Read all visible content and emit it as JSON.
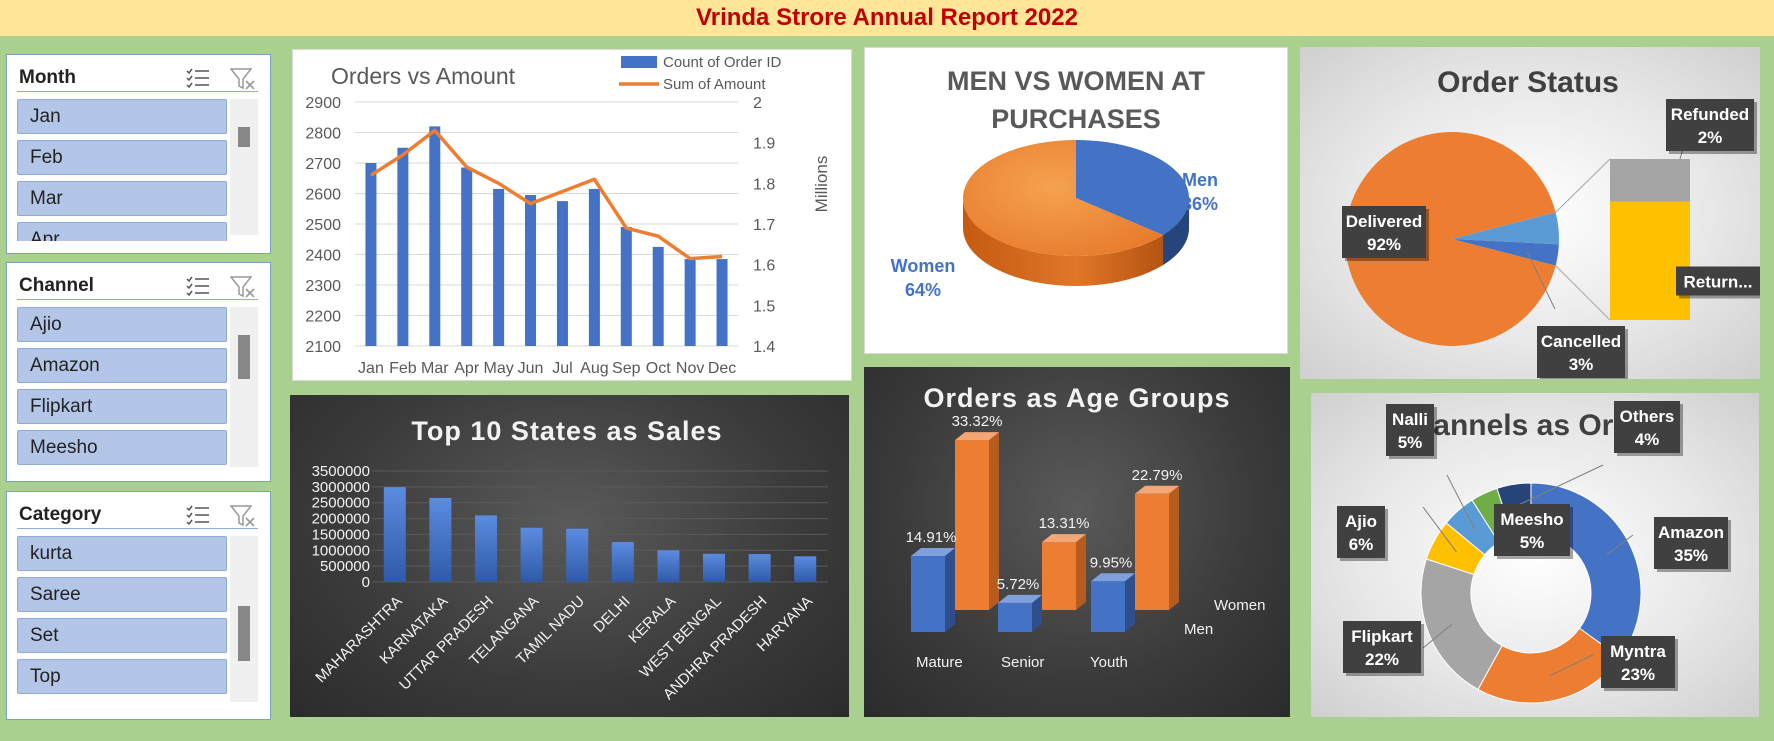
{
  "header": {
    "title": "Vrinda Strore Annual Report 2022"
  },
  "slicers": {
    "month": {
      "title": "Month",
      "items": [
        "Jan",
        "Feb",
        "Mar",
        "Apr"
      ]
    },
    "channel": {
      "title": "Channel",
      "items": [
        "Ajio",
        "Amazon",
        "Flipkart",
        "Meesho"
      ]
    },
    "category": {
      "title": "Category",
      "items": [
        "kurta",
        "Saree",
        "Set",
        "Top"
      ]
    }
  },
  "colors": {
    "blue": "#4472c4",
    "orange": "#ed7d31",
    "grey": "#a5a5a5",
    "gold": "#ffc000",
    "lightblue": "#5b9bd5",
    "green": "#70ad47",
    "navy": "#264478"
  },
  "chart_data": [
    {
      "type": "bar",
      "title": "Orders vs Amount",
      "categories": [
        "Jan",
        "Feb",
        "Mar",
        "Apr",
        "May",
        "Jun",
        "Jul",
        "Aug",
        "Sep",
        "Oct",
        "Nov",
        "Dec"
      ],
      "series": [
        {
          "name": "Count of Order ID",
          "type": "bar",
          "axis": "left",
          "values": [
            2700,
            2750,
            2820,
            2685,
            2615,
            2595,
            2575,
            2615,
            2490,
            2425,
            2385,
            2385
          ]
        },
        {
          "name": "Sum of Amount",
          "type": "line",
          "axis": "right",
          "values": [
            1.82,
            1.87,
            1.93,
            1.84,
            1.8,
            1.75,
            1.78,
            1.81,
            1.69,
            1.67,
            1.615,
            1.62
          ]
        }
      ],
      "ylim": [
        2100,
        2900
      ],
      "yticks": [
        2100,
        2200,
        2300,
        2400,
        2500,
        2600,
        2700,
        2800,
        2900
      ],
      "y2lim": [
        1.4,
        2
      ],
      "y2ticks": [
        "1.4",
        "1.5",
        "1.6",
        "1.7",
        "1.8",
        "1.9",
        "2"
      ],
      "y2label": "Millions",
      "legend": "top-right"
    },
    {
      "type": "pie",
      "title_lines": [
        "MEN VS WOMEN AT",
        "PURCHASES"
      ],
      "slices": [
        {
          "label": "Men",
          "pct": "36%",
          "value": 36
        },
        {
          "label": "Women",
          "pct": "64%",
          "value": 64
        }
      ]
    },
    {
      "type": "pie",
      "title": "Order Status",
      "slices": [
        {
          "label": "Delivered",
          "pct": "92%",
          "value": 92
        },
        {
          "label": "Refunded",
          "pct": "2%",
          "value": 2
        },
        {
          "label": "Cancelled",
          "pct": "3%",
          "value": 3
        },
        {
          "label": "Return...",
          "pct": "",
          "value": 3
        }
      ]
    },
    {
      "type": "bar",
      "title": "Top 10 States as Sales",
      "categories": [
        "MAHARASHTRA",
        "KARNATAKA",
        "UTTAR PRADESH",
        "TELANGANA",
        "TAMIL NADU",
        "DELHI",
        "KERALA",
        "WEST BENGAL",
        "ANDHRA PRADESH",
        "HARYANA"
      ],
      "values": [
        2990000,
        2650000,
        2100000,
        1710000,
        1680000,
        1260000,
        1000000,
        890000,
        880000,
        810000
      ],
      "ylim": [
        0,
        3500000
      ],
      "yticks": [
        "0",
        "500000",
        "1000000",
        "1500000",
        "2000000",
        "2500000",
        "3000000",
        "3500000"
      ]
    },
    {
      "type": "bar",
      "title": "Orders as Age Groups",
      "categories": [
        "Mature",
        "Senior",
        "Youth"
      ],
      "series": [
        {
          "name": "Men",
          "values": [
            14.91,
            5.72,
            9.95
          ],
          "labels": [
            "14.91%",
            "5.72%",
            "9.95%"
          ]
        },
        {
          "name": "Women",
          "values": [
            33.32,
            13.31,
            22.79
          ],
          "labels": [
            "33.32%",
            "13.31%",
            "22.79%"
          ]
        }
      ]
    },
    {
      "type": "pie",
      "title": "Channels as Orders",
      "slices": [
        {
          "label": "Amazon",
          "pct": "35%",
          "value": 35
        },
        {
          "label": "Myntra",
          "pct": "23%",
          "value": 23
        },
        {
          "label": "Flipkart",
          "pct": "22%",
          "value": 22
        },
        {
          "label": "Ajio",
          "pct": "6%",
          "value": 6
        },
        {
          "label": "Nalli",
          "pct": "5%",
          "value": 5
        },
        {
          "label": "Others",
          "pct": "4%",
          "value": 4
        },
        {
          "label": "Meesho",
          "pct": "5%",
          "value": 5
        }
      ]
    }
  ]
}
